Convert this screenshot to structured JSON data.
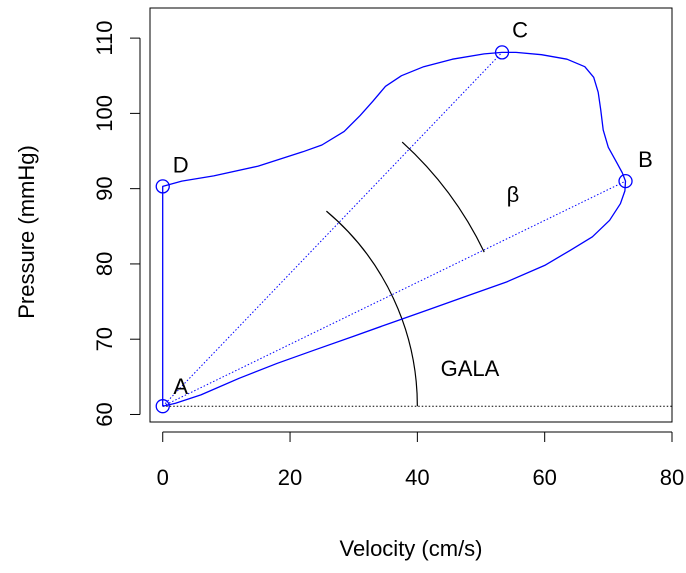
{
  "chart_data": {
    "type": "line",
    "title": "",
    "xlabel": "Velocity (cm/s)",
    "ylabel": "Pressure (mmHg)",
    "xlim": [
      -2,
      80
    ],
    "ylim": [
      59,
      114
    ],
    "x_ticks": [
      0,
      20,
      40,
      60,
      80
    ],
    "x_tick_labels": [
      "0",
      "20",
      "40",
      "60",
      "80"
    ],
    "y_ticks": [
      60,
      70,
      80,
      90,
      100,
      110
    ],
    "y_tick_labels": [
      "60",
      "70",
      "80",
      "90",
      "100",
      "110"
    ],
    "grid": false,
    "line_color": "#0000ff",
    "loop": [
      [
        0,
        61.1
      ],
      [
        2,
        61.5
      ],
      [
        6,
        62.6
      ],
      [
        12,
        64.8
      ],
      [
        18,
        66.8
      ],
      [
        24,
        68.6
      ],
      [
        30,
        70.4
      ],
      [
        36,
        72.2
      ],
      [
        42,
        74.0
      ],
      [
        48,
        75.8
      ],
      [
        54,
        77.6
      ],
      [
        60,
        79.8
      ],
      [
        64,
        81.8
      ],
      [
        67.5,
        83.6
      ],
      [
        70.2,
        85.8
      ],
      [
        71.9,
        88.0
      ],
      [
        72.6,
        89.7
      ],
      [
        72.7,
        91.0
      ],
      [
        72.2,
        92.1
      ],
      [
        71.3,
        93.5
      ],
      [
        70.0,
        95.5
      ],
      [
        69.2,
        97.8
      ],
      [
        68.8,
        100.5
      ],
      [
        68.4,
        102.8
      ],
      [
        67.7,
        104.8
      ],
      [
        66.3,
        106.2
      ],
      [
        63.5,
        107.2
      ],
      [
        59.5,
        107.8
      ],
      [
        55.5,
        108.1
      ],
      [
        53.3,
        108.1
      ],
      [
        50.5,
        107.9
      ],
      [
        45.5,
        107.2
      ],
      [
        41.0,
        106.2
      ],
      [
        37.5,
        105.0
      ],
      [
        35.0,
        103.6
      ],
      [
        33.0,
        101.6
      ],
      [
        31.0,
        99.7
      ],
      [
        28.5,
        97.6
      ],
      [
        25.0,
        95.8
      ],
      [
        22.0,
        94.9
      ],
      [
        15.0,
        93.0
      ],
      [
        8.0,
        91.7
      ],
      [
        3.0,
        91.0
      ],
      [
        0,
        90.3
      ],
      [
        0,
        61.1
      ]
    ],
    "points": [
      {
        "label": "A",
        "x": 0,
        "y": 61.1
      },
      {
        "label": "B",
        "x": 72.7,
        "y": 91.0
      },
      {
        "label": "C",
        "x": 53.3,
        "y": 108.1
      },
      {
        "label": "D",
        "x": 0,
        "y": 90.3
      }
    ],
    "reference_lines": [
      {
        "from": "A",
        "to": "B",
        "style": "dotted"
      },
      {
        "from": "A",
        "to": "C",
        "style": "dotted"
      },
      {
        "from": "A",
        "to": "horizontal",
        "style": "dotted"
      }
    ],
    "angle_arcs": [
      {
        "label": "GALA",
        "center": "A",
        "radius": 40,
        "from_angle_deg": 0,
        "to_angle_deg": 50.0
      },
      {
        "label": "β",
        "center": "A",
        "radius": 56,
        "from_angle_deg": 25.6,
        "to_angle_deg": 47.8
      }
    ]
  }
}
